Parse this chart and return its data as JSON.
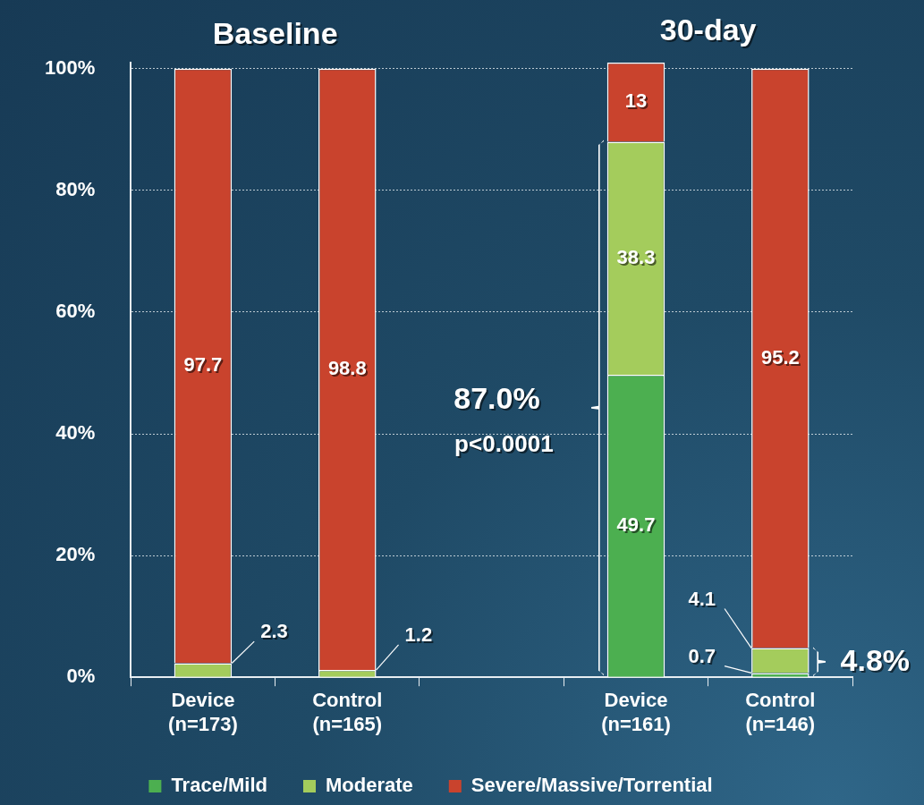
{
  "chart_data": {
    "type": "bar",
    "stacked": true,
    "categories": [
      "Device\n(n=173)",
      "Control\n(n=165)",
      null,
      "Device\n(n=161)",
      "Control\n(n=146)"
    ],
    "series": [
      {
        "name": "Trace/Mild",
        "color": "#4caf50",
        "values": [
          0,
          0,
          null,
          49.7,
          0.7
        ],
        "value_labels": [
          null,
          null,
          null,
          "49.7",
          "0.7"
        ]
      },
      {
        "name": "Moderate",
        "color": "#a4cc5c",
        "values": [
          2.3,
          1.2,
          null,
          38.3,
          4.1
        ],
        "value_labels": [
          "2.3",
          "1.2",
          null,
          "38.3",
          "4.1"
        ]
      },
      {
        "name": "Severe/Massive/Torrential",
        "color": "#c9432d",
        "values": [
          97.7,
          98.8,
          null,
          13,
          95.2
        ],
        "value_labels": [
          "97.7",
          "98.8",
          null,
          "13",
          "95.2"
        ]
      }
    ],
    "ylim": [
      0,
      101
    ],
    "yticks": [
      {
        "value": 0,
        "label": "0%"
      },
      {
        "value": 20,
        "label": "20%"
      },
      {
        "value": 40,
        "label": "40%"
      },
      {
        "value": 60,
        "label": "60%"
      },
      {
        "value": 80,
        "label": "80%"
      },
      {
        "value": 100,
        "label": "100%"
      }
    ],
    "grid": "y",
    "legend": "bottom",
    "annotations": [
      "Baseline",
      "30-day",
      "87.0%",
      "p<0.0001",
      "4.8%"
    ]
  }
}
